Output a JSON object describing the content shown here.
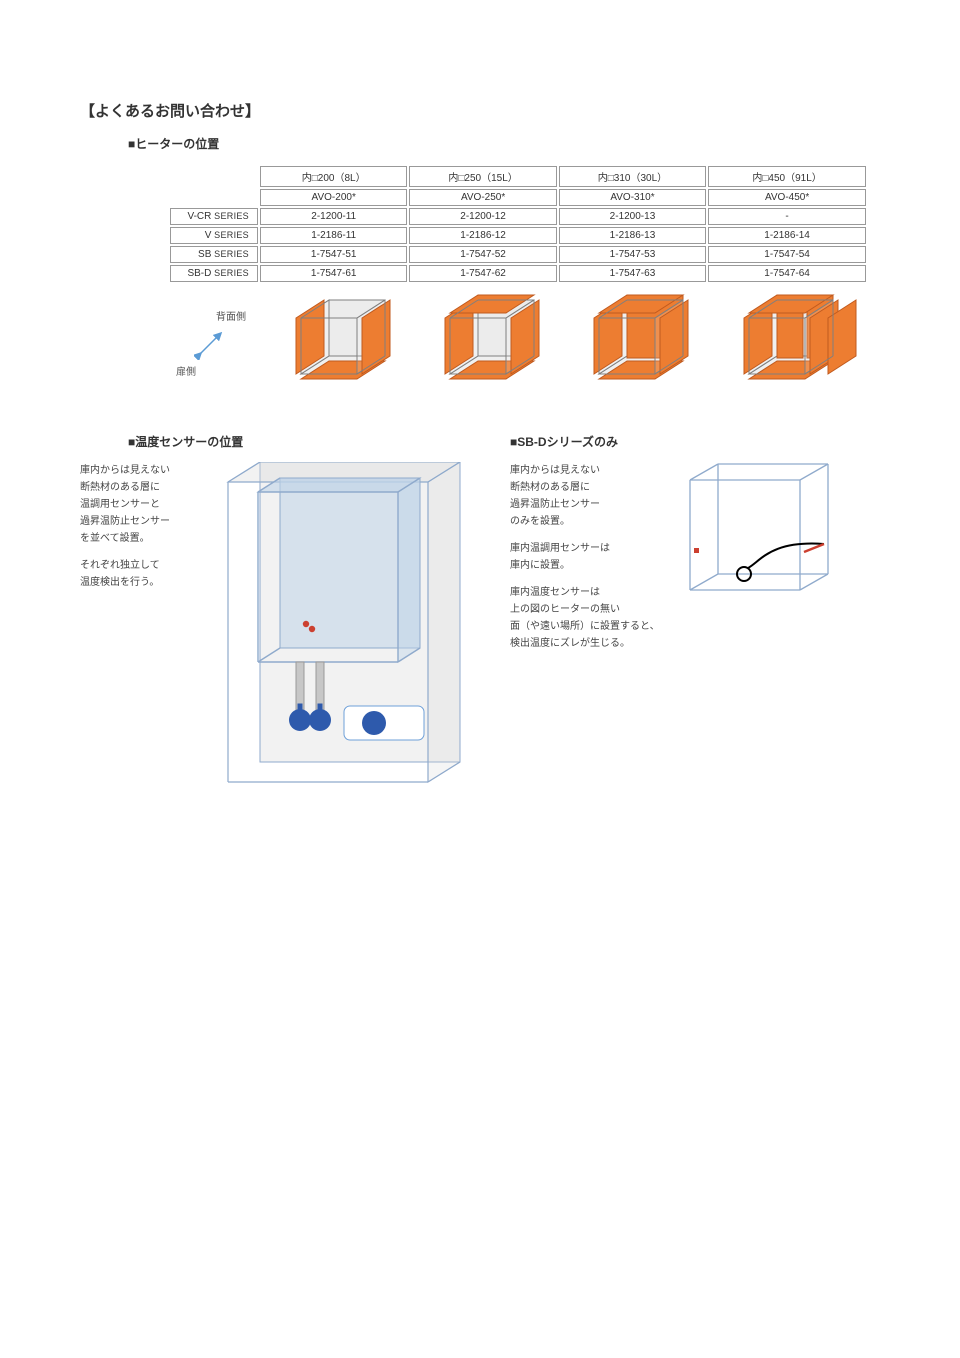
{
  "title": "【よくあるお問い合わせ】",
  "section_heater": "■ヒーターの位置",
  "table": {
    "headers": [
      "内□200（8L）",
      "内□250（15L）",
      "内□310（30L）",
      "内□450（91L）"
    ],
    "avo": [
      "AVO-200*",
      "AVO-250*",
      "AVO-310*",
      "AVO-450*"
    ],
    "rows": [
      {
        "label": "V-CR",
        "suffix": " SERIES",
        "cells": [
          "2-1200-11",
          "2-1200-12",
          "2-1200-13",
          "-"
        ]
      },
      {
        "label": "V",
        "suffix": " SERIES",
        "cells": [
          "1-2186-11",
          "1-2186-12",
          "1-2186-13",
          "1-2186-14"
        ]
      },
      {
        "label": "SB",
        "suffix": " SERIES",
        "cells": [
          "1-7547-51",
          "1-7547-52",
          "1-7547-53",
          "1-7547-54"
        ]
      },
      {
        "label": "SB-D",
        "suffix": " SERIES",
        "cells": [
          "1-7547-61",
          "1-7547-62",
          "1-7547-63",
          "1-7547-64"
        ]
      }
    ],
    "legend_back": "背面側",
    "legend_door": "扉側",
    "cube_colors": {
      "orange": "#ed7d31",
      "gray": "#d9d9d9",
      "line": "#7f7f7f"
    },
    "cubes": [
      {
        "panels": [
          "left",
          "right",
          "bottom"
        ]
      },
      {
        "panels": [
          "left",
          "right",
          "bottom",
          "top"
        ]
      },
      {
        "panels": [
          "left",
          "right",
          "bottom",
          "top",
          "back"
        ]
      },
      {
        "panels": [
          "left",
          "right",
          "bottom",
          "top",
          "back-split",
          "extra-right"
        ]
      }
    ]
  },
  "sensor_left": {
    "title": "■温度センサーの位置",
    "p1": "庫内からは見えない\n断熱材のある層に\n温調用センサーと\n過昇温防止センサー\nを並べて設置。",
    "p2": "それぞれ独立して\n温度検出を行う。",
    "diagram": {
      "outer": "#d9d9d9",
      "inner": "#bfd4e8",
      "line": "#8faacc",
      "sensor_dot": "#cc4030",
      "knob": "#2e5aac",
      "dial": "#2e5aac"
    }
  },
  "sensor_right": {
    "title": "■SB-Dシリーズのみ",
    "p1": "庫内からは見えない\n断熱材のある層に\n過昇温防止センサー\nのみを設置。",
    "p2": "庫内温調用センサーは\n庫内に設置。",
    "p3": "庫内温度センサーは\n上の図のヒーターの無い\n面（や遠い場所）に設置すると、\n検出温度にズレが生じる。",
    "diagram": {
      "box": "#ffffff",
      "line": "#8faacc",
      "dot": "#cc4030",
      "cable": "#000000",
      "tip": "#cc4030"
    }
  }
}
